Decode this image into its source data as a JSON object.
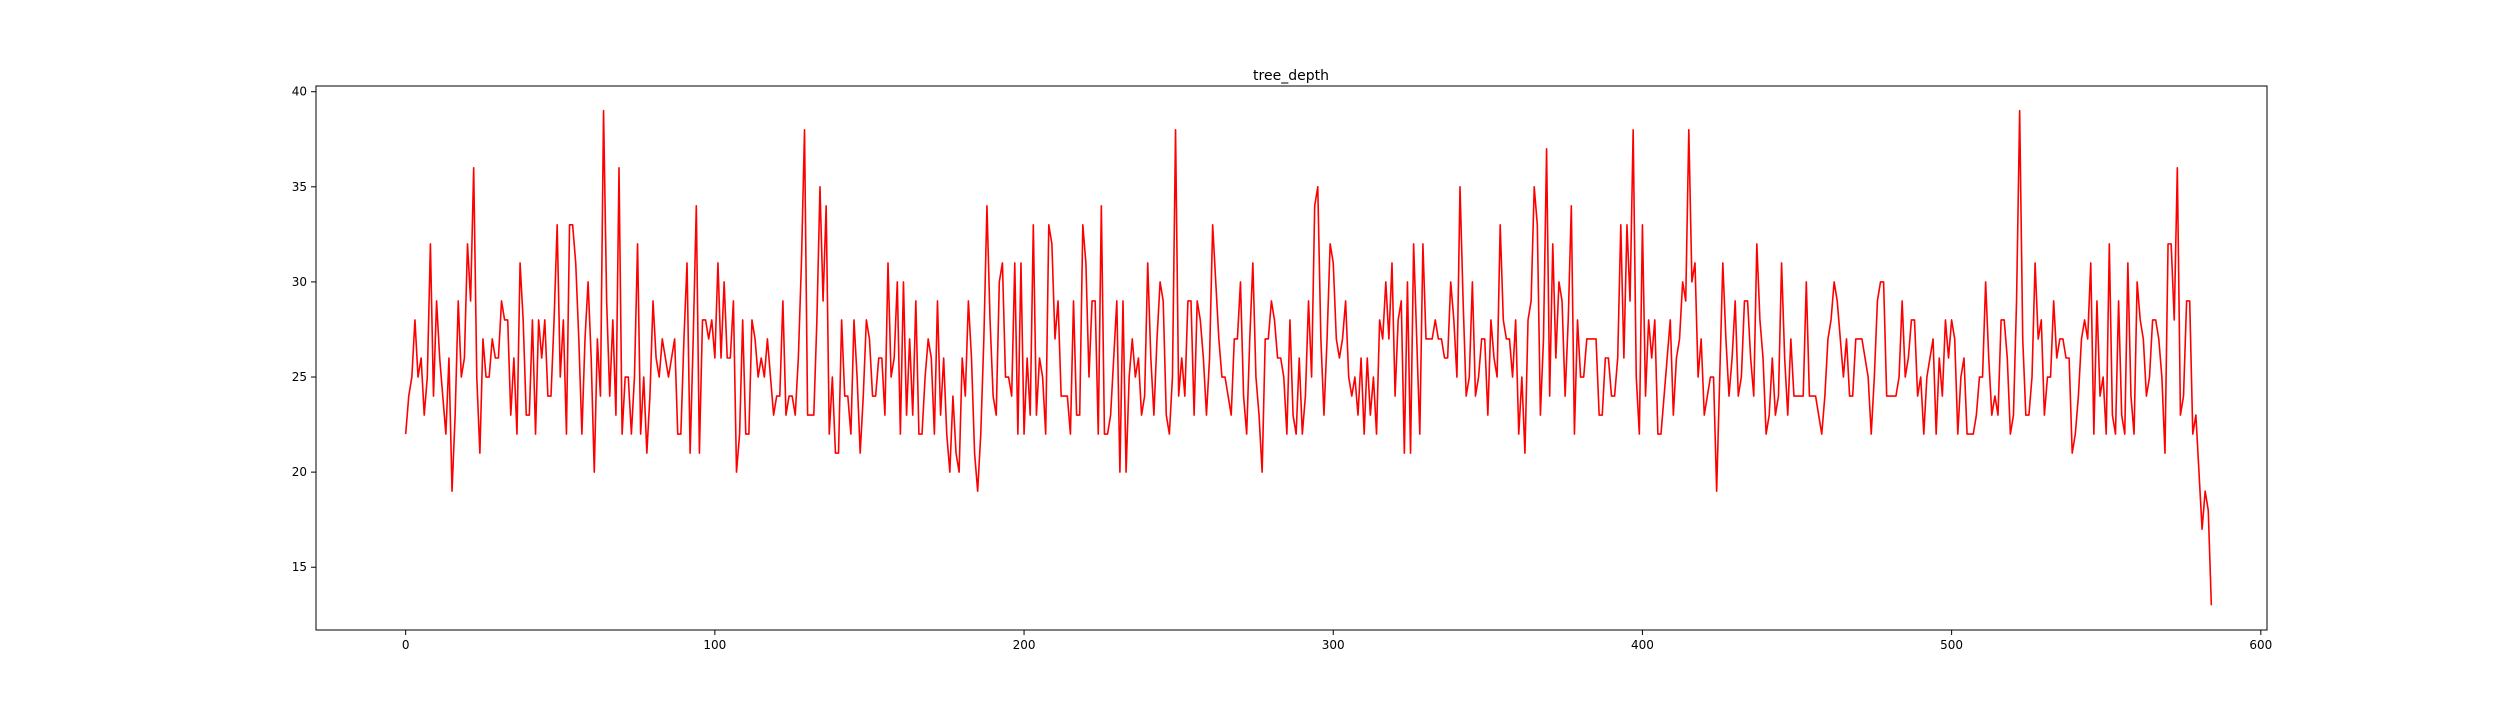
{
  "chart_data": {
    "type": "line",
    "title": "tree_depth",
    "xlabel": "",
    "ylabel": "",
    "xlim": [
      -29,
      602
    ],
    "ylim": [
      11.7,
      40.3
    ],
    "xticks": [
      0,
      100,
      200,
      300,
      400,
      500,
      600
    ],
    "yticks": [
      15,
      20,
      25,
      30,
      35,
      40
    ],
    "grid": false,
    "legend": "none",
    "series": [
      {
        "color": "#ff0000",
        "x_start": 0,
        "x_step": 1,
        "values": [
          22,
          24,
          25,
          28,
          25,
          26,
          23,
          25,
          32,
          24,
          29,
          26,
          24,
          22,
          26,
          19,
          23,
          29,
          25,
          26,
          32,
          29,
          36,
          25,
          21,
          27,
          25,
          25,
          27,
          26,
          26,
          29,
          28,
          28,
          23,
          26,
          22,
          31,
          28,
          23,
          23,
          28,
          22,
          28,
          26,
          28,
          24,
          24,
          28,
          33,
          25,
          28,
          22,
          33,
          33,
          31,
          27,
          22,
          27,
          30,
          26,
          20,
          27,
          24,
          39,
          29,
          24,
          28,
          23,
          36,
          22,
          25,
          25,
          22,
          25,
          32,
          22,
          25,
          21,
          24,
          29,
          26,
          25,
          27,
          26,
          25,
          26,
          27,
          22,
          22,
          27,
          31,
          21,
          27,
          34,
          21,
          28,
          28,
          27,
          28,
          26,
          31,
          26,
          30,
          26,
          26,
          29,
          20,
          22,
          28,
          22,
          22,
          28,
          27,
          25,
          26,
          25,
          27,
          25,
          23,
          24,
          24,
          29,
          23,
          24,
          24,
          23,
          26,
          31,
          38,
          23,
          23,
          23,
          28,
          35,
          29,
          34,
          22,
          25,
          21,
          21,
          28,
          24,
          24,
          22,
          28,
          25,
          21,
          24,
          28,
          27,
          24,
          24,
          26,
          26,
          23,
          31,
          25,
          26,
          30,
          22,
          30,
          23,
          27,
          23,
          29,
          22,
          22,
          25,
          27,
          26,
          22,
          29,
          23,
          26,
          22,
          20,
          24,
          21,
          20,
          26,
          24,
          29,
          26,
          21,
          19,
          22,
          27,
          34,
          28,
          24,
          23,
          30,
          31,
          25,
          25,
          24,
          31,
          22,
          31,
          22,
          26,
          23,
          33,
          23,
          26,
          25,
          22,
          33,
          32,
          27,
          29,
          24,
          24,
          24,
          22,
          29,
          23,
          23,
          33,
          31,
          25,
          29,
          29,
          22,
          34,
          22,
          22,
          23,
          26,
          29,
          20,
          29,
          20,
          25,
          27,
          25,
          26,
          23,
          24,
          31,
          26,
          23,
          27,
          30,
          29,
          23,
          22,
          25,
          38,
          24,
          26,
          24,
          29,
          29,
          23,
          29,
          28,
          26,
          23,
          26,
          33,
          30,
          27,
          25,
          25,
          24,
          23,
          27,
          27,
          30,
          24,
          22,
          27,
          31,
          25,
          23,
          20,
          27,
          27,
          29,
          28,
          26,
          26,
          25,
          22,
          28,
          23,
          22,
          26,
          22,
          24,
          29,
          25,
          34,
          35,
          27,
          23,
          27,
          32,
          31,
          27,
          26,
          27,
          29,
          25,
          24,
          25,
          23,
          26,
          22,
          26,
          23,
          25,
          22,
          28,
          27,
          30,
          27,
          31,
          24,
          28,
          29,
          21,
          30,
          21,
          32,
          27,
          22,
          32,
          27,
          27,
          27,
          28,
          27,
          27,
          26,
          26,
          30,
          28,
          25,
          35,
          29,
          24,
          25,
          30,
          24,
          25,
          27,
          27,
          23,
          28,
          26,
          25,
          33,
          28,
          27,
          27,
          25,
          28,
          22,
          25,
          21,
          28,
          29,
          35,
          33,
          23,
          27,
          37,
          24,
          32,
          26,
          30,
          29,
          24,
          28,
          34,
          22,
          28,
          25,
          25,
          27,
          27,
          27,
          27,
          23,
          23,
          26,
          26,
          24,
          24,
          26,
          33,
          26,
          33,
          29,
          38,
          25,
          22,
          33,
          24,
          28,
          26,
          28,
          22,
          22,
          24,
          26,
          28,
          23,
          26,
          27,
          30,
          29,
          38,
          30,
          31,
          25,
          27,
          23,
          24,
          25,
          25,
          19,
          25,
          31,
          27,
          24,
          26,
          29,
          24,
          25,
          29,
          29,
          26,
          24,
          32,
          28,
          26,
          22,
          23,
          26,
          23,
          24,
          31,
          26,
          23,
          27,
          24,
          24,
          24,
          24,
          30,
          24,
          24,
          24,
          23,
          22,
          24,
          27,
          28,
          30,
          29,
          27,
          25,
          27,
          24,
          24,
          27,
          27,
          27,
          26,
          25,
          22,
          25,
          29,
          30,
          30,
          24,
          24,
          24,
          24,
          25,
          29,
          25,
          26,
          28,
          28,
          24,
          25,
          22,
          25,
          26,
          27,
          22,
          26,
          24,
          28,
          26,
          28,
          27,
          22,
          25,
          26,
          22,
          22,
          22,
          23,
          25,
          25,
          30,
          26,
          23,
          24,
          23,
          28,
          28,
          26,
          22,
          23,
          29,
          39,
          27,
          23,
          23,
          25,
          31,
          27,
          28,
          23,
          25,
          25,
          29,
          26,
          27,
          27,
          26,
          26,
          21,
          22,
          24,
          27,
          28,
          27,
          31,
          22,
          29,
          24,
          25,
          22,
          32,
          23,
          22,
          29,
          23,
          22,
          31,
          24,
          22,
          30,
          28,
          27,
          24,
          25,
          28,
          28,
          27,
          25,
          21,
          32,
          32,
          28,
          36,
          23,
          24,
          29,
          29,
          22,
          23,
          20,
          17,
          19,
          18,
          13
        ]
      }
    ]
  }
}
